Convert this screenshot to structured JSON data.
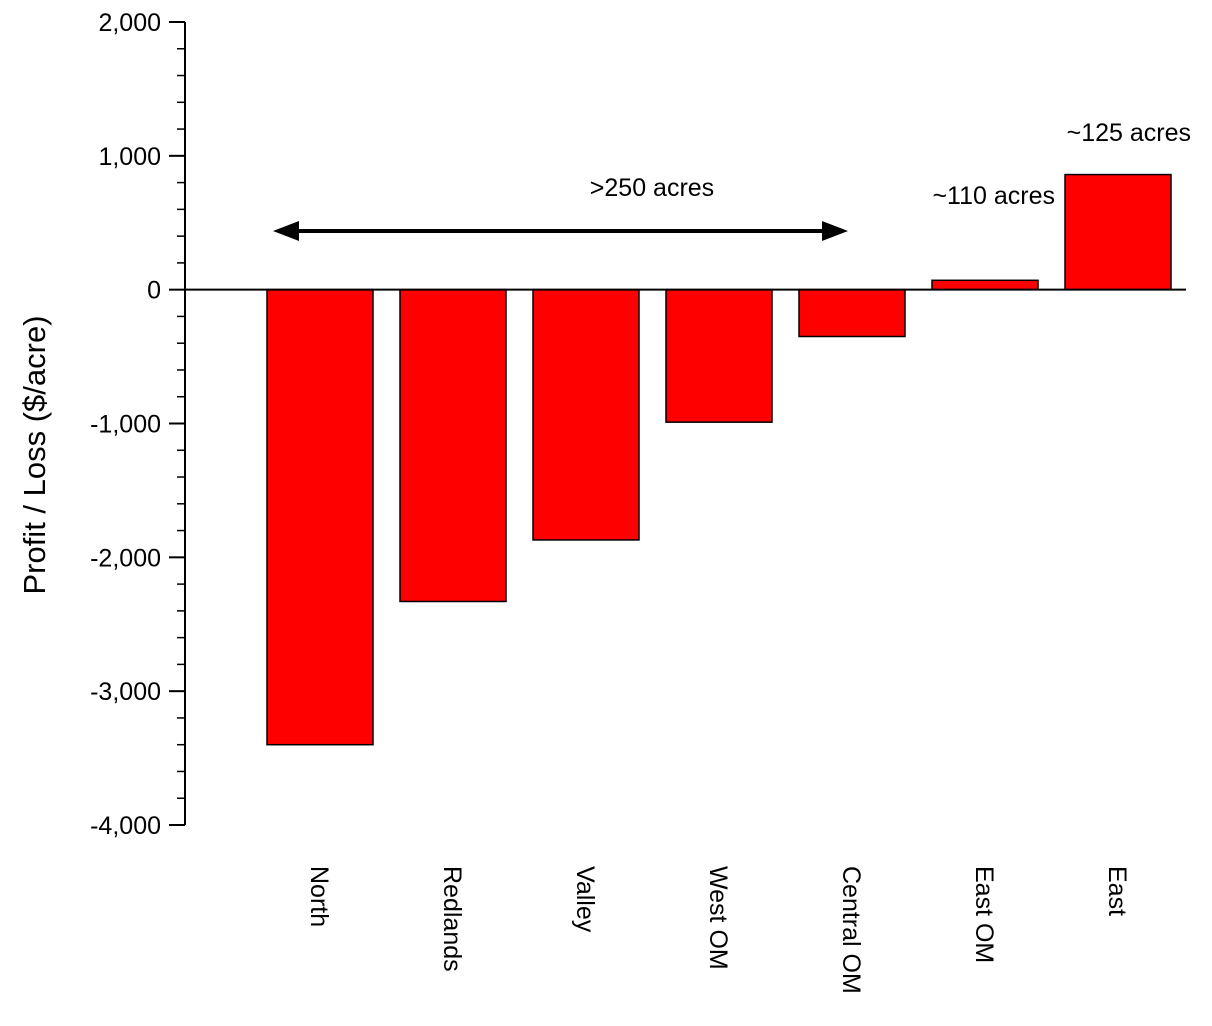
{
  "chart_data": {
    "type": "bar",
    "ylabel": "Profit / Loss ($/acre)",
    "ylim": [
      -4000,
      2000
    ],
    "yticks": [
      2000,
      1000,
      0,
      -1000,
      -2000,
      -3000,
      -4000
    ],
    "ytick_labels": [
      "2,000",
      "1,000",
      "0",
      "-1,000",
      "-2,000",
      "-3,000",
      "-4,000"
    ],
    "categories": [
      "North",
      "Redlands",
      "Valley",
      "West OM",
      "Central OM",
      "East OM",
      "East"
    ],
    "values": [
      -3400,
      -2330,
      -1870,
      -990,
      -350,
      70,
      860
    ],
    "bar_color": "#ff0000",
    "annotations": {
      "range_label": ">250 acres",
      "range_arrow_categories": [
        "North",
        "Central OM"
      ],
      "east_om_label": "~110 acres",
      "east_label": "~125 acres"
    }
  }
}
